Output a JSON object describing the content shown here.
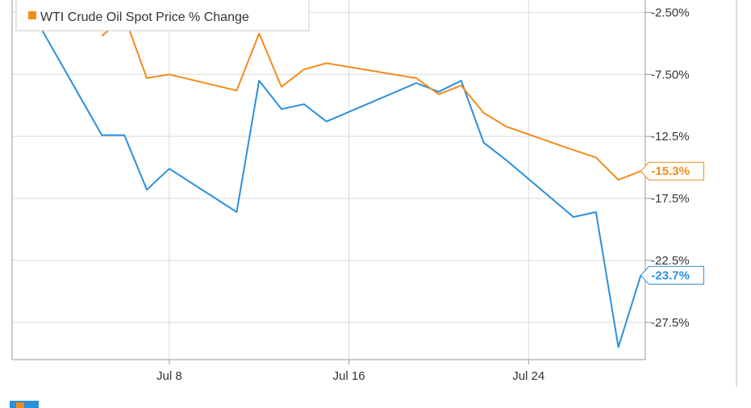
{
  "chart_data": {
    "type": "line",
    "x_ticks": [
      "Jul 8",
      "Jul 16",
      "Jul 24"
    ],
    "x_tick_positions": [
      8,
      16,
      24
    ],
    "xlim": [
      1,
      29.2
    ],
    "y_ticks": [
      "-2.50%",
      "-7.50%",
      "-12.5%",
      "-17.5%",
      "-22.5%",
      "-27.5%"
    ],
    "y_tick_values": [
      -2.5,
      -7.5,
      -12.5,
      -17.5,
      -22.5,
      -27.5
    ],
    "ylim": [
      -30.5,
      -1.5
    ],
    "grid": true,
    "legend_position": "top-left",
    "series": [
      {
        "name": "",
        "color": "#2b8fdc",
        "x": [
          1.6,
          5,
          6,
          7,
          8,
          11,
          12,
          13,
          14,
          15,
          19,
          20,
          21,
          22,
          23,
          26,
          27,
          28,
          29
        ],
        "y": [
          -1.6,
          -12.4,
          -12.4,
          -16.8,
          -15.1,
          -18.6,
          -8.0,
          -10.3,
          -9.9,
          -11.3,
          -8.2,
          -8.9,
          -8.0,
          -13.0,
          -14.4,
          -19.0,
          -18.6,
          -29.5,
          -23.7
        ],
        "end_label": "-23.7%"
      },
      {
        "name": "WTI Crude Oil Spot Price % Change",
        "color": "#f28c1b",
        "x": [
          5,
          6,
          7,
          8,
          11,
          12,
          13,
          14,
          15,
          19,
          20,
          21,
          22,
          23,
          26,
          27,
          28,
          29
        ],
        "y": [
          -4.4,
          -2.8,
          -7.8,
          -7.5,
          -8.8,
          -4.2,
          -8.5,
          -7.1,
          -6.6,
          -7.8,
          -9.1,
          -8.4,
          -10.6,
          -11.7,
          -13.6,
          -14.2,
          -16.0,
          -15.3
        ],
        "end_label": "-15.3%"
      }
    ]
  },
  "colors": {
    "blue": "#2b8fdc",
    "orange": "#f28c1b",
    "grid": "#d9d9d9",
    "axis": "#999999"
  }
}
